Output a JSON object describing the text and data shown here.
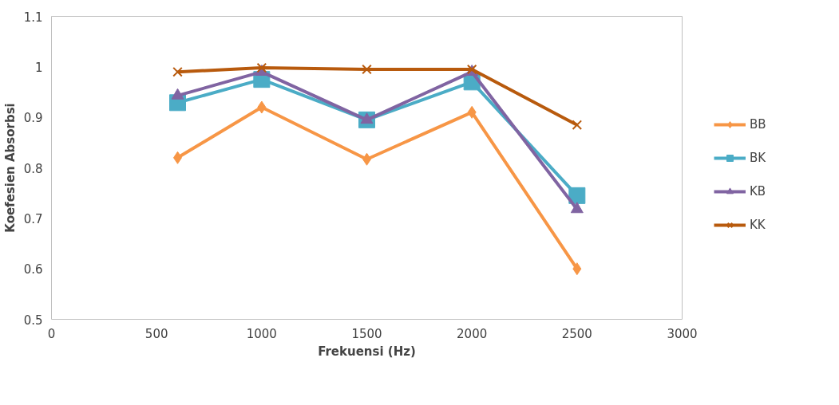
{
  "chart_data": {
    "type": "line",
    "xlabel": "Frekuensi (Hz)",
    "ylabel": "Koefesien Absorbsi",
    "x": [
      600,
      1000,
      1500,
      2000,
      2500
    ],
    "series": [
      {
        "name": "BB",
        "color": "#f79646",
        "marker": "diamond",
        "values": [
          0.82,
          0.92,
          0.817,
          0.91,
          0.6
        ]
      },
      {
        "name": "BK",
        "color": "#4bacc6",
        "marker": "square",
        "values": [
          0.929,
          0.975,
          0.895,
          0.97,
          0.745
        ]
      },
      {
        "name": "KB",
        "color": "#8064a2",
        "marker": "triangle",
        "values": [
          0.943,
          0.99,
          0.895,
          0.99,
          0.718
        ]
      },
      {
        "name": "KK",
        "color": "#b85a0d",
        "marker": "cross",
        "values": [
          0.99,
          0.998,
          0.995,
          0.995,
          0.885
        ]
      }
    ],
    "xlim": [
      0,
      3000
    ],
    "xticks": [
      0,
      500,
      1000,
      1500,
      2000,
      2500,
      3000
    ],
    "ylim": [
      0.5,
      1.1
    ],
    "yticks": [
      {
        "value": 0.5,
        "label": "0.5"
      },
      {
        "value": 0.6,
        "label": "0.6"
      },
      {
        "value": 0.7,
        "label": "0.7"
      },
      {
        "value": 0.8,
        "label": "0.8"
      },
      {
        "value": 0.9,
        "label": "0.9"
      },
      {
        "value": 1,
        "label": "1"
      },
      {
        "value": 1.1,
        "label": "1.1"
      }
    ],
    "grid": false,
    "legend": "right",
    "line_style": "solid"
  }
}
